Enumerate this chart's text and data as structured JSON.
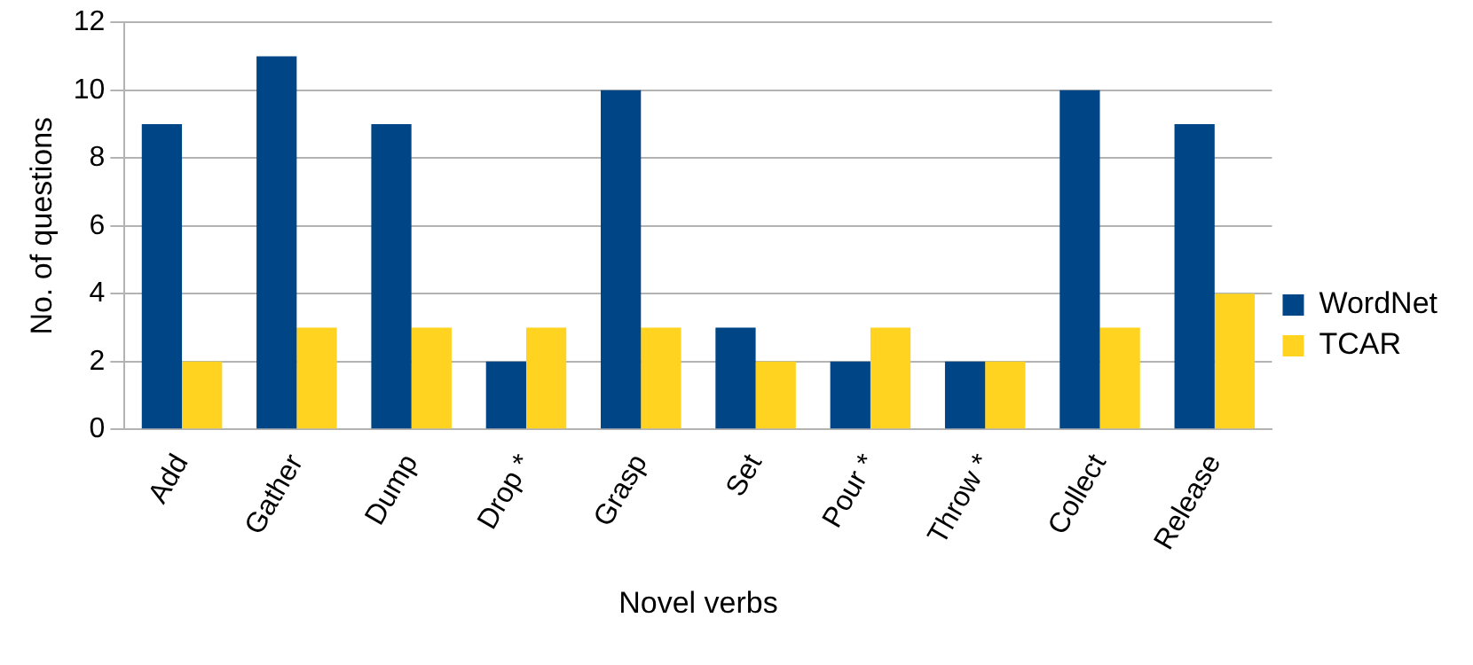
{
  "chart_data": {
    "type": "bar",
    "xlabel": "Novel verbs",
    "ylabel": "No. of questions",
    "categories": [
      "Add",
      "Gather",
      "Dump",
      "Drop *",
      "Grasp",
      "Set",
      "Pour *",
      "Throw *",
      "Collect",
      "Release"
    ],
    "series": [
      {
        "name": "WordNet",
        "color": "#004586",
        "values": [
          9,
          11,
          9,
          2,
          10,
          3,
          2,
          2,
          10,
          9
        ]
      },
      {
        "name": "TCAR",
        "color": "#ffd320",
        "values": [
          2,
          3,
          3,
          3,
          3,
          2,
          3,
          2,
          3,
          4
        ]
      }
    ],
    "ylim": [
      0,
      12
    ],
    "yticks": [
      0,
      2,
      4,
      6,
      8,
      10,
      12
    ],
    "grid": "y",
    "legend": "right"
  }
}
